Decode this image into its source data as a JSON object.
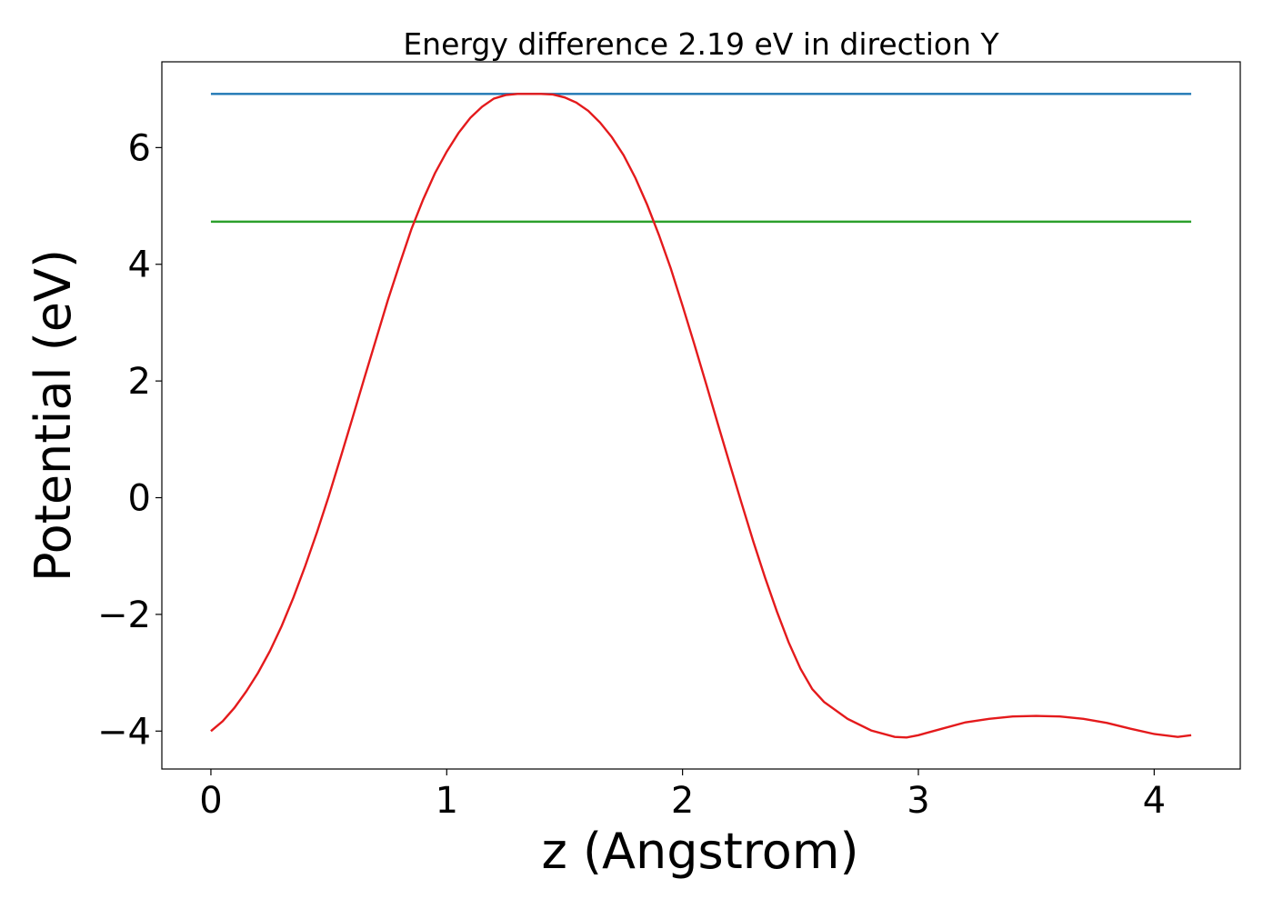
{
  "chart_data": {
    "type": "line",
    "title": "Energy difference 2.19 eV in direction Y",
    "xlabel": "z (Angstrom)",
    "ylabel": "Potential (eV)",
    "xlim": [
      -0.208,
      4.365
    ],
    "ylim": [
      -4.65,
      7.47
    ],
    "xticks": [
      0,
      1,
      2,
      3,
      4
    ],
    "yticks": [
      {
        "value": -4,
        "label": "−4"
      },
      {
        "value": -2,
        "label": "−2"
      },
      0,
      2,
      4,
      6
    ],
    "series": [
      {
        "color": "#1f77b4",
        "x": [
          0,
          4.157
        ],
        "values": [
          6.92,
          6.92
        ]
      },
      {
        "color": "#2ca02c",
        "x": [
          0,
          4.157
        ],
        "values": [
          4.73,
          4.73
        ]
      },
      {
        "color": "#e41a1c",
        "x": [
          0,
          0.05,
          0.1,
          0.15,
          0.2,
          0.25,
          0.3,
          0.35,
          0.4,
          0.45,
          0.5,
          0.55,
          0.6,
          0.65,
          0.7,
          0.75,
          0.8,
          0.85,
          0.9,
          0.95,
          1.0,
          1.05,
          1.1,
          1.15,
          1.2,
          1.25,
          1.3,
          1.35,
          1.4,
          1.45,
          1.5,
          1.55,
          1.6,
          1.65,
          1.7,
          1.75,
          1.8,
          1.85,
          1.9,
          1.95,
          2.0,
          2.05,
          2.1,
          2.15,
          2.2,
          2.25,
          2.3,
          2.35,
          2.4,
          2.45,
          2.5,
          2.55,
          2.6,
          2.7,
          2.8,
          2.9,
          2.95,
          3.0,
          3.1,
          3.2,
          3.3,
          3.4,
          3.5,
          3.6,
          3.7,
          3.8,
          3.9,
          4.0,
          4.1,
          4.157
        ],
        "values": [
          -4.0,
          -3.83,
          -3.6,
          -3.32,
          -3.0,
          -2.63,
          -2.2,
          -1.71,
          -1.17,
          -0.59,
          0.03,
          0.69,
          1.36,
          2.04,
          2.71,
          3.38,
          4.0,
          4.6,
          5.11,
          5.56,
          5.93,
          6.25,
          6.51,
          6.7,
          6.84,
          6.9,
          6.92,
          6.92,
          6.92,
          6.91,
          6.86,
          6.77,
          6.63,
          6.43,
          6.18,
          5.87,
          5.48,
          5.02,
          4.5,
          3.93,
          3.29,
          2.63,
          1.95,
          1.26,
          0.58,
          -0.09,
          -0.75,
          -1.37,
          -1.95,
          -2.48,
          -2.93,
          -3.28,
          -3.5,
          -3.79,
          -3.99,
          -4.1,
          -4.11,
          -4.07,
          -3.96,
          -3.85,
          -3.79,
          -3.75,
          -3.74,
          -3.75,
          -3.79,
          -3.86,
          -3.96,
          -4.05,
          -4.1,
          -4.07
        ]
      }
    ]
  }
}
